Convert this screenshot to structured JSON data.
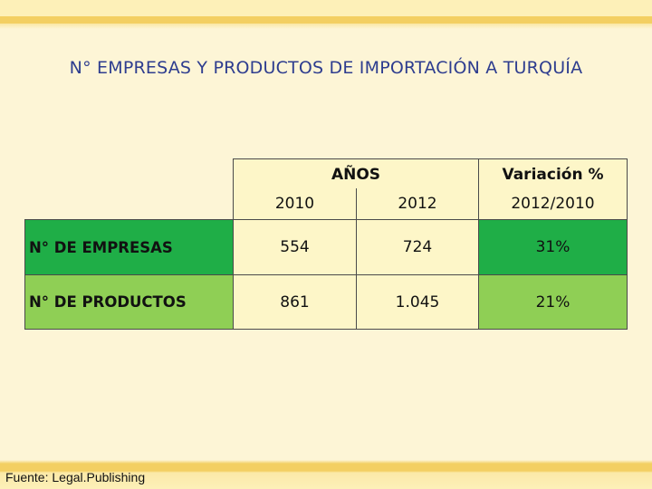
{
  "title": "N° EMPRESAS Y PRODUCTOS DE IMPORTACIÓN A TURQUÍA",
  "table": {
    "years_header": "AÑOS",
    "variation_header": "Variación %",
    "year_1": "2010",
    "year_2": "2012",
    "variation_period": "2012/2010",
    "rows": [
      {
        "label": "N° DE EMPRESAS",
        "v2010": "554",
        "v2012": "724",
        "variation": "31%"
      },
      {
        "label": "N° DE PRODUCTOS",
        "v2010": "861",
        "v2012": "1.045",
        "variation": "21%"
      }
    ]
  },
  "colors": {
    "title": "#2e3d8f",
    "header_fill": "#fdf6c8",
    "row1_label_fill": "#1fae47",
    "row2_label_fill": "#8fcf55"
  },
  "footer": "Fuente: Legal.Publishing"
}
